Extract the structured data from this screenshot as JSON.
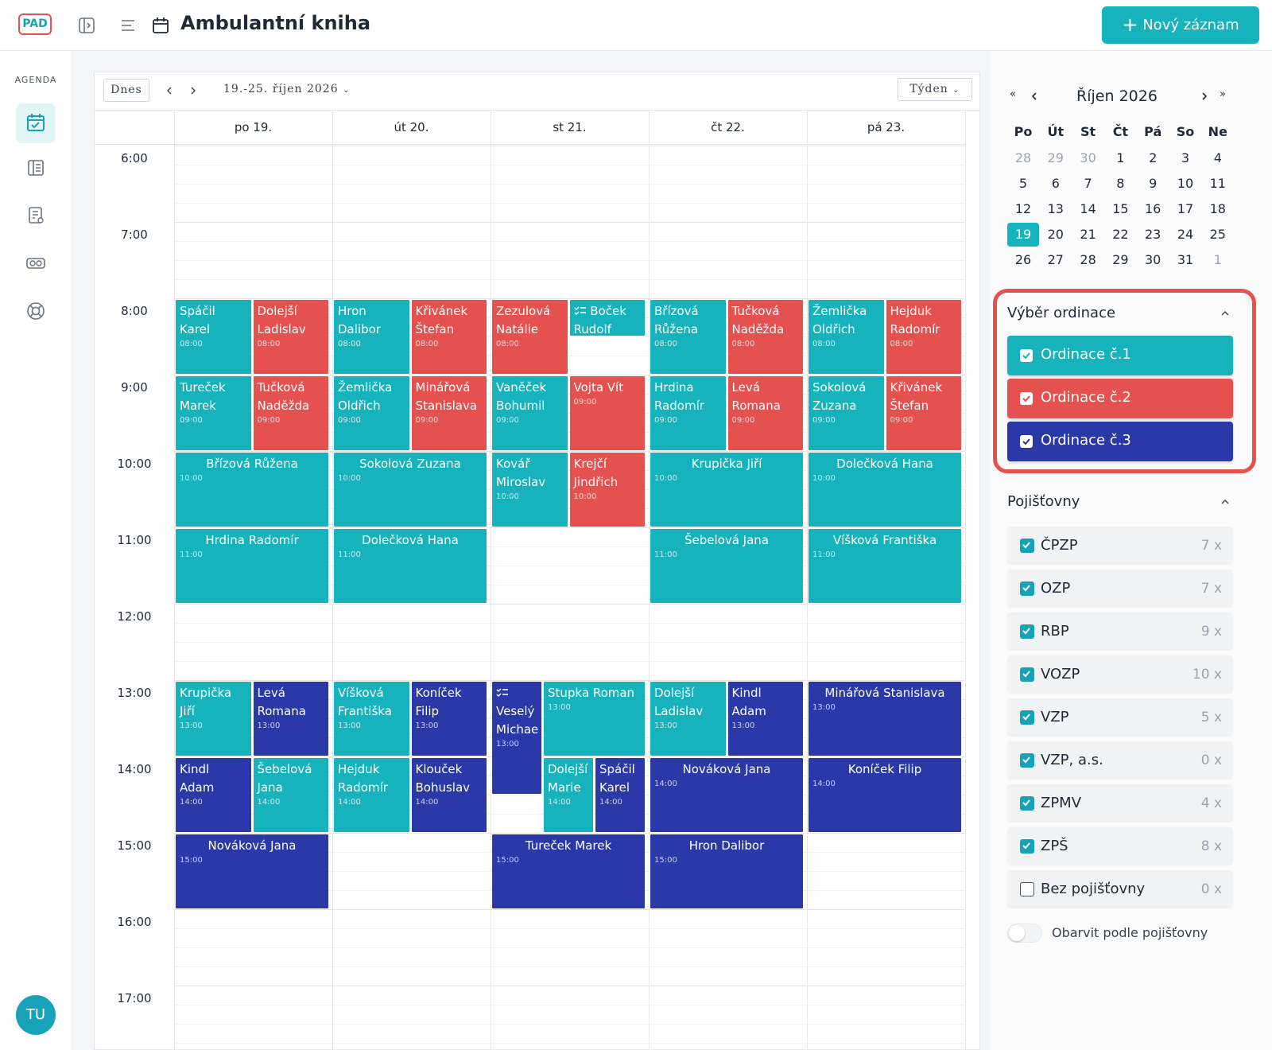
{
  "header": {
    "logo": "PAD",
    "title": "Ambulantní kniha",
    "new_button": "Nový záznam"
  },
  "sidebar": {
    "section": "AGENDA",
    "avatar": "TU"
  },
  "toolbar": {
    "today": "Dnes",
    "range": "19.-25. říjen 2026",
    "view": "Týden"
  },
  "calendar": {
    "hours": [
      "6:00",
      "7:00",
      "8:00",
      "9:00",
      "10:00",
      "11:00",
      "12:00",
      "13:00",
      "14:00",
      "15:00",
      "16:00",
      "17:00"
    ],
    "days": [
      {
        "label": "po 19.",
        "events": [
          {
            "name": "Spáčil Karel",
            "time": "08:00",
            "minutes": 60,
            "color": "#17b3bd"
          },
          {
            "name": "Dolejší Ladislav",
            "time": "08:00",
            "minutes": 60,
            "color": "#e5514f"
          },
          {
            "name": "Tureček Marek",
            "time": "09:00",
            "minutes": 60,
            "color": "#17b3bd"
          },
          {
            "name": "Tučková Naděžda",
            "time": "09:00",
            "minutes": 60,
            "color": "#e5514f"
          },
          {
            "name": "Břízová Růžena",
            "time": "10:00",
            "minutes": 60,
            "color": "#17b3bd"
          },
          {
            "name": "Hrdina Radomír",
            "time": "11:00",
            "minutes": 60,
            "color": "#17b3bd"
          },
          {
            "name": "Krupička Jiří",
            "time": "13:00",
            "minutes": 60,
            "color": "#17b3bd"
          },
          {
            "name": "Levá Romana",
            "time": "13:00",
            "minutes": 60,
            "color": "#2a38a8"
          },
          {
            "name": "Kindl Adam",
            "time": "14:00",
            "minutes": 60,
            "color": "#2a38a8"
          },
          {
            "name": "Šebelová Jana",
            "time": "14:00",
            "minutes": 60,
            "color": "#17b3bd"
          },
          {
            "name": "Nováková Jana",
            "time": "15:00",
            "minutes": 60,
            "color": "#2a38a8"
          }
        ]
      },
      {
        "label": "út 20.",
        "events": [
          {
            "name": "Hron Dalibor",
            "time": "08:00",
            "minutes": 60,
            "color": "#17b3bd"
          },
          {
            "name": "Křivánek Štefan",
            "time": "08:00",
            "minutes": 60,
            "color": "#e5514f"
          },
          {
            "name": "Žemlička Oldřich",
            "time": "09:00",
            "minutes": 60,
            "color": "#17b3bd"
          },
          {
            "name": "Minářová Stanislava",
            "time": "09:00",
            "minutes": 60,
            "color": "#e5514f"
          },
          {
            "name": "Sokolová Zuzana",
            "time": "10:00",
            "minutes": 60,
            "color": "#17b3bd"
          },
          {
            "name": "Dolečková Hana",
            "time": "11:00",
            "minutes": 60,
            "color": "#17b3bd"
          },
          {
            "name": "Víšková Františka",
            "time": "13:00",
            "minutes": 60,
            "color": "#17b3bd"
          },
          {
            "name": "Koníček Filip",
            "time": "13:00",
            "minutes": 60,
            "color": "#2a38a8"
          },
          {
            "name": "Hejduk Radomír",
            "time": "14:00",
            "minutes": 60,
            "color": "#17b3bd"
          },
          {
            "name": "Klouček Bohuslav",
            "time": "14:00",
            "minutes": 60,
            "color": "#2a38a8"
          }
        ]
      },
      {
        "label": "st 21.",
        "events": [
          {
            "name": "Zezulová Natálie",
            "time": "08:00",
            "minutes": 60,
            "color": "#e5514f"
          },
          {
            "name": "Boček Rudolf",
            "time": "08:00",
            "minutes": 30,
            "color": "#17b3bd",
            "checklist": true
          },
          {
            "name": "Vaněček Bohumil",
            "time": "09:00",
            "minutes": 60,
            "color": "#17b3bd"
          },
          {
            "name": "Vojta Vít",
            "time": "09:00",
            "minutes": 60,
            "color": "#e5514f"
          },
          {
            "name": "Kovář Miroslav",
            "time": "10:00",
            "minutes": 60,
            "color": "#17b3bd"
          },
          {
            "name": "Krejčí Jindřich",
            "time": "10:00",
            "minutes": 60,
            "color": "#e5514f"
          },
          {
            "name": "Veselý Michae",
            "time": "13:00",
            "minutes": 90,
            "color": "#2a38a8",
            "checklist": true
          },
          {
            "name": "Stupka Roman",
            "time": "13:00",
            "minutes": 60,
            "color": "#17b3bd"
          },
          {
            "name": "Dolejší Marie",
            "time": "14:00",
            "minutes": 60,
            "color": "#17b3bd"
          },
          {
            "name": "Spáčil Karel",
            "time": "14:00",
            "minutes": 60,
            "color": "#2a38a8"
          },
          {
            "name": "Tureček Marek",
            "time": "15:00",
            "minutes": 60,
            "color": "#2a38a8"
          }
        ]
      },
      {
        "label": "čt 22.",
        "events": [
          {
            "name": "Břízová Růžena",
            "time": "08:00",
            "minutes": 60,
            "color": "#17b3bd"
          },
          {
            "name": "Tučková Naděžda",
            "time": "08:00",
            "minutes": 60,
            "color": "#e5514f"
          },
          {
            "name": "Hrdina Radomír",
            "time": "09:00",
            "minutes": 60,
            "color": "#17b3bd"
          },
          {
            "name": "Levá Romana",
            "time": "09:00",
            "minutes": 60,
            "color": "#e5514f"
          },
          {
            "name": "Krupička Jiří",
            "time": "10:00",
            "minutes": 60,
            "color": "#17b3bd"
          },
          {
            "name": "Šebelová Jana",
            "time": "11:00",
            "minutes": 60,
            "color": "#17b3bd"
          },
          {
            "name": "Dolejší Ladislav",
            "time": "13:00",
            "minutes": 60,
            "color": "#17b3bd"
          },
          {
            "name": "Kindl Adam",
            "time": "13:00",
            "minutes": 60,
            "color": "#2a38a8"
          },
          {
            "name": "Nováková Jana",
            "time": "14:00",
            "minutes": 60,
            "color": "#2a38a8"
          },
          {
            "name": "Hron Dalibor",
            "time": "15:00",
            "minutes": 60,
            "color": "#2a38a8"
          }
        ]
      },
      {
        "label": "pá 23.",
        "events": [
          {
            "name": "Žemlička Oldřich",
            "time": "08:00",
            "minutes": 60,
            "color": "#17b3bd"
          },
          {
            "name": "Hejduk Radomír",
            "time": "08:00",
            "minutes": 60,
            "color": "#e5514f"
          },
          {
            "name": "Sokolová Zuzana",
            "time": "09:00",
            "minutes": 60,
            "color": "#17b3bd"
          },
          {
            "name": "Křivánek Štefan",
            "time": "09:00",
            "minutes": 60,
            "color": "#e5514f"
          },
          {
            "name": "Dolečková Hana",
            "time": "10:00",
            "minutes": 60,
            "color": "#17b3bd"
          },
          {
            "name": "Víšková Františka",
            "time": "11:00",
            "minutes": 60,
            "color": "#17b3bd"
          },
          {
            "name": "Minářová Stanislava",
            "time": "13:00",
            "minutes": 60,
            "color": "#2a38a8"
          },
          {
            "name": "Koníček Filip",
            "time": "14:00",
            "minutes": 60,
            "color": "#2a38a8"
          }
        ]
      }
    ]
  },
  "mini_calendar": {
    "title": "Říjen 2026",
    "weekdays": [
      "Po",
      "Út",
      "St",
      "Čt",
      "Pá",
      "So",
      "Ne"
    ],
    "weeks": [
      [
        {
          "label": "28",
          "muted": true
        },
        {
          "label": "29",
          "muted": true
        },
        {
          "label": "30",
          "muted": true
        },
        "1",
        "2",
        "3",
        "4"
      ],
      [
        "5",
        "6",
        "7",
        "8",
        "9",
        "10",
        "11"
      ],
      [
        "12",
        "13",
        "14",
        "15",
        "16",
        "17",
        "18"
      ],
      [
        {
          "label": "19",
          "selected": true
        },
        "20",
        "21",
        "22",
        "23",
        "24",
        "25"
      ],
      [
        "26",
        "27",
        "28",
        "29",
        "30",
        "31",
        {
          "label": "1",
          "muted": true
        }
      ]
    ]
  },
  "ordinace": {
    "title": "Výběr ordinace",
    "items": [
      {
        "label": "Ordinace č.1",
        "color": "#17b3bd",
        "checked": true
      },
      {
        "label": "Ordinace č.2",
        "color": "#e5514f",
        "checked": true
      },
      {
        "label": "Ordinace č.3",
        "color": "#2a38a8",
        "checked": true
      }
    ]
  },
  "pojistovny": {
    "title": "Pojišťovny",
    "items": [
      {
        "label": "ČPZP",
        "count": "7 x",
        "checked": true
      },
      {
        "label": "OZP",
        "count": "7 x",
        "checked": true
      },
      {
        "label": "RBP",
        "count": "9 x",
        "checked": true
      },
      {
        "label": "VOZP",
        "count": "10 x",
        "checked": true
      },
      {
        "label": "VZP",
        "count": "5 x",
        "checked": true
      },
      {
        "label": "VZP, a.s.",
        "count": "0 x",
        "checked": true
      },
      {
        "label": "ZPMV",
        "count": "4 x",
        "checked": true
      },
      {
        "label": "ZPŠ",
        "count": "8 x",
        "checked": true
      },
      {
        "label": "Bez pojišťovny",
        "count": "0 x",
        "checked": false
      }
    ],
    "toggle": {
      "label": "Obarvit podle pojišťovny",
      "on": false
    }
  }
}
